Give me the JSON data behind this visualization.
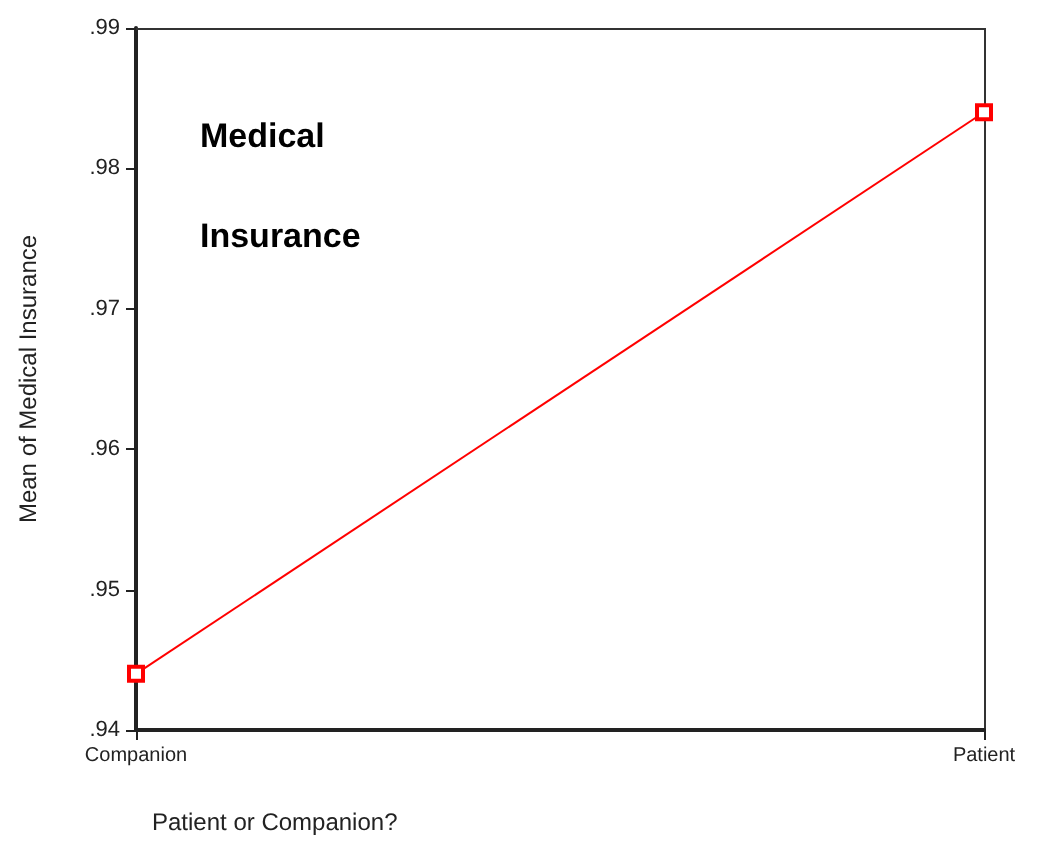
{
  "chart_data": {
    "type": "line",
    "title": "Medical Insurance",
    "xlabel": "Patient or Companion?",
    "ylabel": "Mean of Medical Insurance",
    "categories": [
      "Companion",
      "Patient"
    ],
    "series": [
      {
        "color": "#ff0000",
        "values": [
          0.944,
          0.984
        ]
      }
    ],
    "ylim": [
      0.94,
      0.99
    ],
    "yticks": [
      {
        "value": 0.94,
        "label": ".94"
      },
      {
        "value": 0.95,
        "label": ".95"
      },
      {
        "value": 0.96,
        "label": ".96"
      },
      {
        "value": 0.97,
        "label": ".97"
      },
      {
        "value": 0.98,
        "label": ".98"
      },
      {
        "value": 0.99,
        "label": ".99"
      }
    ],
    "marker": "square",
    "line_style": "solid",
    "grid": "x"
  }
}
